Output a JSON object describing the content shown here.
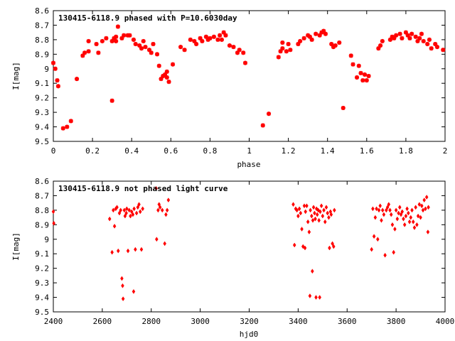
{
  "chart_data": [
    {
      "type": "scatter",
      "title": "130415-6118.9 phased with P=10.6030day",
      "xlabel": "phase",
      "ylabel": "I[mag]",
      "xlim": [
        0,
        2
      ],
      "ylim": [
        8.6,
        9.5
      ],
      "y_inverted": true,
      "grid": false,
      "marker": "cross",
      "color": "#ff0000",
      "xticks": [
        "0",
        "0.2",
        "0.4",
        "0.6",
        "0.8",
        "1",
        "1.2",
        "1.4",
        "1.6",
        "1.8",
        "2"
      ],
      "yticks": [
        "8.6",
        "8.7",
        "8.8",
        "8.9",
        "9",
        "9.1",
        "9.2",
        "9.3",
        "9.4",
        "9.5"
      ],
      "points": [
        [
          0.0,
          8.96
        ],
        [
          0.01,
          9.0
        ],
        [
          0.02,
          9.08
        ],
        [
          0.025,
          9.12
        ],
        [
          0.05,
          9.41
        ],
        [
          0.07,
          9.4
        ],
        [
          0.09,
          9.36
        ],
        [
          0.12,
          9.07
        ],
        [
          0.15,
          8.91
        ],
        [
          0.16,
          8.89
        ],
        [
          0.18,
          8.81
        ],
        [
          0.18,
          8.88
        ],
        [
          0.22,
          8.83
        ],
        [
          0.23,
          8.89
        ],
        [
          0.25,
          8.81
        ],
        [
          0.27,
          8.79
        ],
        [
          0.3,
          9.22
        ],
        [
          0.3,
          8.81
        ],
        [
          0.31,
          8.79
        ],
        [
          0.32,
          8.78
        ],
        [
          0.33,
          8.71
        ],
        [
          0.32,
          8.81
        ],
        [
          0.35,
          8.79
        ],
        [
          0.36,
          8.77
        ],
        [
          0.38,
          8.77
        ],
        [
          0.39,
          8.77
        ],
        [
          0.41,
          8.8
        ],
        [
          0.42,
          8.83
        ],
        [
          0.44,
          8.84
        ],
        [
          0.45,
          8.86
        ],
        [
          0.46,
          8.81
        ],
        [
          0.47,
          8.85
        ],
        [
          0.49,
          8.87
        ],
        [
          0.5,
          8.89
        ],
        [
          0.51,
          8.83
        ],
        [
          0.53,
          8.9
        ],
        [
          0.54,
          8.98
        ],
        [
          0.55,
          9.07
        ],
        [
          0.56,
          9.05
        ],
        [
          0.57,
          9.04
        ],
        [
          0.58,
          9.02
        ],
        [
          0.59,
          9.09
        ],
        [
          0.58,
          9.06
        ],
        [
          0.61,
          8.97
        ],
        [
          0.65,
          8.85
        ],
        [
          0.67,
          8.87
        ],
        [
          0.7,
          8.8
        ],
        [
          0.72,
          8.81
        ],
        [
          0.73,
          8.83
        ],
        [
          0.75,
          8.79
        ],
        [
          0.76,
          8.81
        ],
        [
          0.78,
          8.78
        ],
        [
          0.79,
          8.8
        ],
        [
          0.8,
          8.79
        ],
        [
          0.82,
          8.78
        ],
        [
          0.84,
          8.8
        ],
        [
          0.85,
          8.77
        ],
        [
          0.86,
          8.8
        ],
        [
          0.87,
          8.75
        ],
        [
          0.88,
          8.77
        ],
        [
          0.9,
          8.84
        ],
        [
          0.92,
          8.85
        ],
        [
          0.94,
          8.89
        ],
        [
          0.95,
          8.87
        ],
        [
          0.97,
          8.89
        ],
        [
          0.98,
          8.96
        ],
        [
          1.07,
          9.39
        ],
        [
          1.1,
          9.31
        ],
        [
          1.15,
          8.92
        ],
        [
          1.16,
          8.88
        ],
        [
          1.17,
          8.82
        ],
        [
          1.17,
          8.86
        ],
        [
          1.19,
          8.88
        ],
        [
          1.2,
          8.83
        ],
        [
          1.21,
          8.87
        ],
        [
          1.25,
          8.83
        ],
        [
          1.26,
          8.81
        ],
        [
          1.28,
          8.79
        ],
        [
          1.3,
          8.77
        ],
        [
          1.31,
          8.78
        ],
        [
          1.32,
          8.8
        ],
        [
          1.34,
          8.76
        ],
        [
          1.36,
          8.77
        ],
        [
          1.37,
          8.75
        ],
        [
          1.38,
          8.74
        ],
        [
          1.39,
          8.76
        ],
        [
          1.42,
          8.83
        ],
        [
          1.43,
          8.85
        ],
        [
          1.44,
          8.84
        ],
        [
          1.46,
          8.82
        ],
        [
          1.48,
          9.27
        ],
        [
          1.52,
          8.91
        ],
        [
          1.53,
          8.97
        ],
        [
          1.55,
          9.06
        ],
        [
          1.56,
          8.98
        ],
        [
          1.57,
          9.03
        ],
        [
          1.58,
          9.08
        ],
        [
          1.59,
          9.04
        ],
        [
          1.6,
          9.08
        ],
        [
          1.61,
          9.05
        ],
        [
          1.66,
          8.86
        ],
        [
          1.67,
          8.84
        ],
        [
          1.68,
          8.81
        ],
        [
          1.72,
          8.8
        ],
        [
          1.73,
          8.78
        ],
        [
          1.74,
          8.79
        ],
        [
          1.75,
          8.77
        ],
        [
          1.77,
          8.76
        ],
        [
          1.78,
          8.79
        ],
        [
          1.8,
          8.75
        ],
        [
          1.81,
          8.77
        ],
        [
          1.82,
          8.79
        ],
        [
          1.83,
          8.76
        ],
        [
          1.85,
          8.78
        ],
        [
          1.86,
          8.81
        ],
        [
          1.87,
          8.79
        ],
        [
          1.88,
          8.76
        ],
        [
          1.89,
          8.81
        ],
        [
          1.91,
          8.83
        ],
        [
          1.92,
          8.8
        ],
        [
          1.93,
          8.86
        ],
        [
          1.95,
          8.83
        ],
        [
          1.96,
          8.85
        ],
        [
          1.99,
          8.87
        ]
      ]
    },
    {
      "type": "scatter",
      "title": "130415-6118.9 not phased light curve",
      "xlabel": "hjd0",
      "ylabel": "I[mag]",
      "xlim": [
        2400,
        4000
      ],
      "ylim": [
        8.6,
        9.5
      ],
      "y_inverted": true,
      "grid": false,
      "marker": "diamond",
      "color": "#ff0000",
      "xticks": [
        "2400",
        "2600",
        "2800",
        "3000",
        "3200",
        "3400",
        "3600",
        "3800",
        "4000"
      ],
      "yticks": [
        "8.6",
        "8.7",
        "8.8",
        "8.9",
        "9",
        "9.1",
        "9.2",
        "9.3",
        "9.4",
        "9.5"
      ],
      "points": [
        [
          2400,
          8.81
        ],
        [
          2402,
          8.89
        ],
        [
          2630,
          8.86
        ],
        [
          2640,
          9.09
        ],
        [
          2645,
          8.8
        ],
        [
          2650,
          8.91
        ],
        [
          2655,
          8.79
        ],
        [
          2660,
          8.78
        ],
        [
          2665,
          9.08
        ],
        [
          2670,
          8.82
        ],
        [
          2675,
          8.8
        ],
        [
          2680,
          9.27
        ],
        [
          2683,
          9.32
        ],
        [
          2685,
          9.41
        ],
        [
          2690,
          8.8
        ],
        [
          2693,
          8.84
        ],
        [
          2698,
          8.82
        ],
        [
          2700,
          8.79
        ],
        [
          2705,
          9.08
        ],
        [
          2710,
          8.8
        ],
        [
          2715,
          8.84
        ],
        [
          2720,
          8.81
        ],
        [
          2725,
          8.83
        ],
        [
          2728,
          9.36
        ],
        [
          2730,
          8.79
        ],
        [
          2735,
          9.07
        ],
        [
          2740,
          8.82
        ],
        [
          2745,
          8.78
        ],
        [
          2750,
          8.76
        ],
        [
          2755,
          8.81
        ],
        [
          2760,
          9.07
        ],
        [
          2765,
          8.79
        ],
        [
          2820,
          8.65
        ],
        [
          2822,
          9.0
        ],
        [
          2828,
          8.8
        ],
        [
          2832,
          8.76
        ],
        [
          2836,
          8.78
        ],
        [
          2845,
          8.8
        ],
        [
          2855,
          9.03
        ],
        [
          2860,
          8.83
        ],
        [
          2865,
          8.8
        ],
        [
          2870,
          8.73
        ],
        [
          3380,
          8.76
        ],
        [
          3385,
          9.04
        ],
        [
          3390,
          8.79
        ],
        [
          3395,
          8.8
        ],
        [
          3400,
          8.84
        ],
        [
          3405,
          8.79
        ],
        [
          3410,
          8.82
        ],
        [
          3415,
          8.93
        ],
        [
          3420,
          9.05
        ],
        [
          3425,
          8.77
        ],
        [
          3428,
          9.06
        ],
        [
          3430,
          8.81
        ],
        [
          3435,
          8.77
        ],
        [
          3440,
          8.88
        ],
        [
          3445,
          8.95
        ],
        [
          3448,
          9.39
        ],
        [
          3450,
          8.8
        ],
        [
          3455,
          8.84
        ],
        [
          3458,
          9.22
        ],
        [
          3460,
          8.87
        ],
        [
          3463,
          8.78
        ],
        [
          3467,
          8.82
        ],
        [
          3470,
          8.86
        ],
        [
          3473,
          9.4
        ],
        [
          3475,
          8.79
        ],
        [
          3478,
          8.83
        ],
        [
          3482,
          8.8
        ],
        [
          3485,
          8.87
        ],
        [
          3488,
          9.4
        ],
        [
          3490,
          8.81
        ],
        [
          3495,
          8.77
        ],
        [
          3500,
          8.84
        ],
        [
          3505,
          8.8
        ],
        [
          3510,
          8.88
        ],
        [
          3515,
          8.78
        ],
        [
          3520,
          8.82
        ],
        [
          3525,
          8.85
        ],
        [
          3528,
          9.06
        ],
        [
          3532,
          8.81
        ],
        [
          3535,
          8.83
        ],
        [
          3540,
          9.03
        ],
        [
          3545,
          9.05
        ],
        [
          3548,
          8.8
        ],
        [
          3700,
          9.07
        ],
        [
          3705,
          8.79
        ],
        [
          3710,
          8.98
        ],
        [
          3715,
          8.85
        ],
        [
          3720,
          8.79
        ],
        [
          3725,
          9.0
        ],
        [
          3730,
          8.8
        ],
        [
          3735,
          8.77
        ],
        [
          3740,
          8.87
        ],
        [
          3745,
          8.8
        ],
        [
          3750,
          8.83
        ],
        [
          3755,
          9.11
        ],
        [
          3760,
          8.8
        ],
        [
          3765,
          8.78
        ],
        [
          3770,
          8.76
        ],
        [
          3775,
          8.8
        ],
        [
          3780,
          8.83
        ],
        [
          3785,
          8.9
        ],
        [
          3790,
          9.09
        ],
        [
          3795,
          8.93
        ],
        [
          3800,
          8.8
        ],
        [
          3805,
          8.86
        ],
        [
          3810,
          8.82
        ],
        [
          3815,
          8.78
        ],
        [
          3820,
          8.83
        ],
        [
          3825,
          8.81
        ],
        [
          3830,
          8.86
        ],
        [
          3835,
          8.9
        ],
        [
          3840,
          8.84
        ],
        [
          3845,
          8.79
        ],
        [
          3850,
          8.82
        ],
        [
          3855,
          8.88
        ],
        [
          3860,
          8.85
        ],
        [
          3865,
          8.8
        ],
        [
          3870,
          8.88
        ],
        [
          3875,
          8.92
        ],
        [
          3880,
          8.78
        ],
        [
          3885,
          8.9
        ],
        [
          3890,
          8.84
        ],
        [
          3895,
          8.76
        ],
        [
          3900,
          8.85
        ],
        [
          3905,
          8.77
        ],
        [
          3910,
          8.8
        ],
        [
          3915,
          8.73
        ],
        [
          3920,
          8.79
        ],
        [
          3925,
          8.71
        ],
        [
          3930,
          8.95
        ],
        [
          3932,
          8.78
        ]
      ]
    }
  ]
}
